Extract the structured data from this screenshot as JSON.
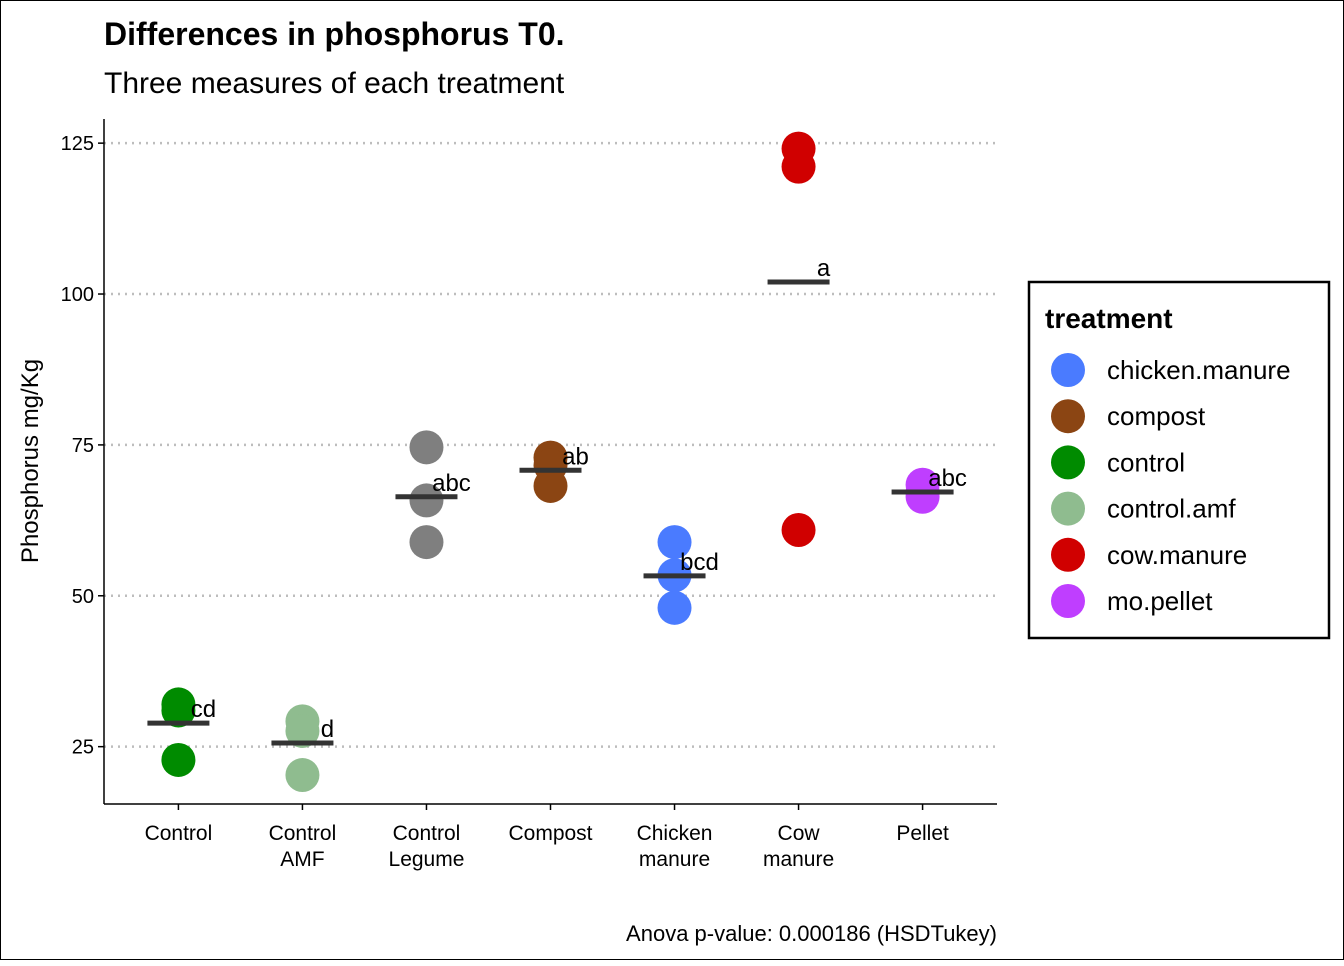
{
  "chart_data": {
    "type": "scatter",
    "title": "Differences in phosphorus T0.",
    "subtitle": "Three measures of each treatment",
    "ylabel": "Phosphorus mg/Kg",
    "xlabel": "",
    "caption": "Anova p-value: 0.000186 (HSDTukey)",
    "ylim": [
      15.5,
      129
    ],
    "yticks": [
      25,
      50,
      75,
      100,
      125
    ],
    "grid": "horizontal-dotted",
    "legend": {
      "title": "treatment",
      "position": "right",
      "entries": [
        {
          "label": "chicken.manure",
          "color": "#4A7BFF"
        },
        {
          "label": "compost",
          "color": "#8B4513"
        },
        {
          "label": "control",
          "color": "#008B00"
        },
        {
          "label": "control.amf",
          "color": "#8FBC8F"
        },
        {
          "label": "cow.manure",
          "color": "#D00000"
        },
        {
          "label": "mo.pellet",
          "color": "#BF3EFF"
        }
      ]
    },
    "categories": [
      {
        "label": [
          "Control"
        ],
        "treatment": "control",
        "color": "#008B00",
        "points": [
          32.0,
          31.0,
          22.8
        ],
        "mean": 28.9,
        "letters": "cd"
      },
      {
        "label": [
          "Control",
          "AMF"
        ],
        "treatment": "control.amf",
        "color": "#8FBC8F",
        "points": [
          29.2,
          27.6,
          20.3
        ],
        "mean": 25.6,
        "letters": "d"
      },
      {
        "label": [
          "Control",
          "Legume"
        ],
        "treatment": "control",
        "color": "#7F7F7F",
        "points": [
          74.6,
          65.8,
          58.9
        ],
        "mean": 66.4,
        "letters": "abc"
      },
      {
        "label": [
          "Compost"
        ],
        "treatment": "compost",
        "color": "#8B4513",
        "points": [
          72.9,
          71.6,
          68.2
        ],
        "mean": 70.8,
        "letters": "ab"
      },
      {
        "label": [
          "Chicken",
          "manure"
        ],
        "treatment": "chicken.manure",
        "color": "#4A7BFF",
        "points": [
          58.9,
          53.4,
          48.0
        ],
        "mean": 53.3,
        "letters": "bcd"
      },
      {
        "label": [
          "Cow",
          "manure"
        ],
        "treatment": "cow.manure",
        "color": "#D00000",
        "points": [
          124.1,
          121.1,
          60.9
        ],
        "mean": 102.0,
        "letters": "a"
      },
      {
        "label": [
          "Pellet"
        ],
        "treatment": "mo.pellet",
        "color": "#BF3EFF",
        "points": [
          68.4,
          67.2,
          66.4
        ],
        "mean": 67.2,
        "letters": "abc"
      }
    ]
  }
}
